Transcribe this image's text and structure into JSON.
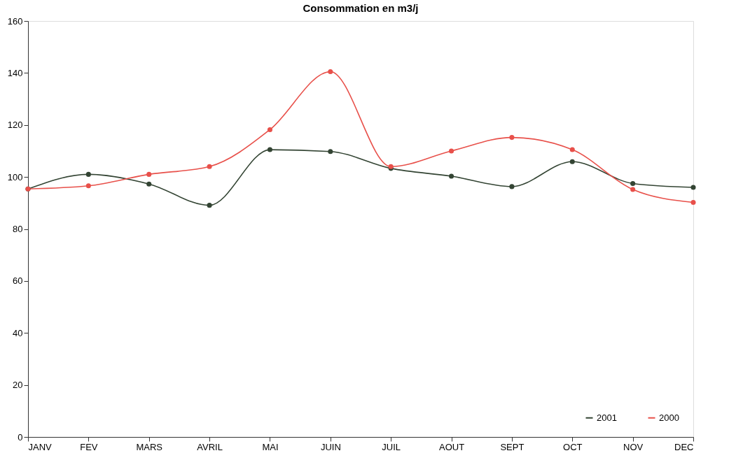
{
  "chart_data": {
    "type": "line",
    "title": "Consommation en m3/j",
    "categories": [
      "JANV",
      "FEV",
      "MARS",
      "AVRIL",
      "MAI",
      "JUIN",
      "JUIL",
      "AOUT",
      "SEPT",
      "OCT",
      "NOV",
      "DEC"
    ],
    "series": [
      {
        "name": "2001",
        "color": "#334433",
        "values": [
          95.4,
          101,
          97.3,
          89.1,
          110.5,
          109.8,
          103.3,
          100.3,
          96.3,
          105.9,
          97.5,
          96
        ]
      },
      {
        "name": "2000",
        "color": "#e8504a",
        "values": [
          95.4,
          96.6,
          101,
          104,
          118.2,
          140.5,
          104,
          110,
          115.2,
          110.5,
          95.2,
          90.2
        ]
      }
    ],
    "ylim": [
      0,
      160
    ],
    "yticks": [
      0,
      20,
      40,
      60,
      80,
      100,
      120,
      140,
      160
    ],
    "grid": false,
    "legend": "bottom right",
    "marker": "circle",
    "line_style": "solid"
  }
}
